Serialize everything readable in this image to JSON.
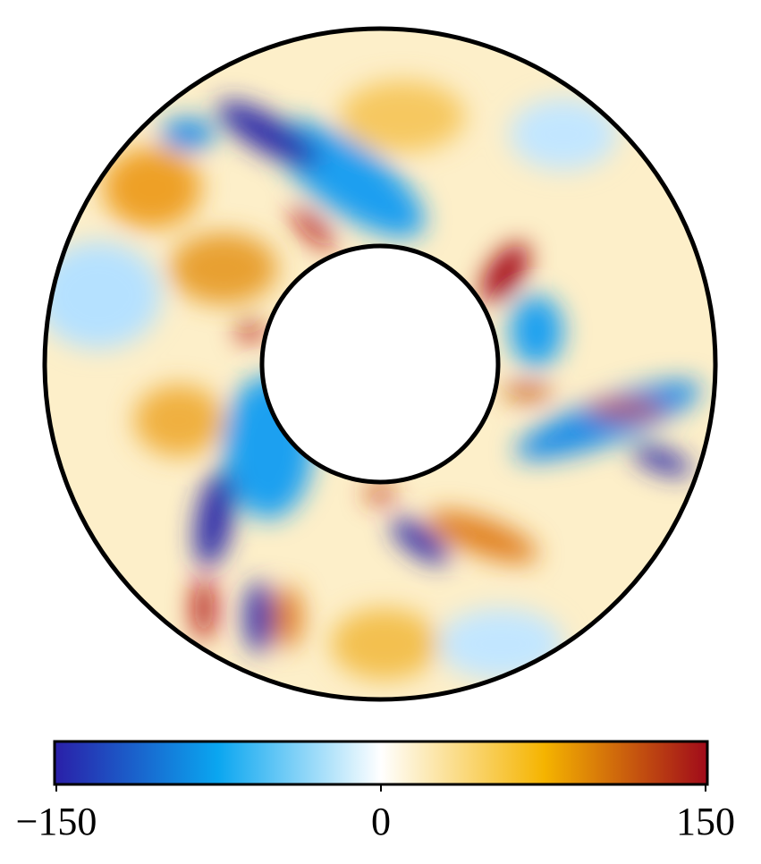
{
  "chart_data": {
    "type": "heatmap",
    "colormap": [
      "#2a1fa8",
      "#0aa6f0",
      "#ffffff",
      "#f5b400",
      "#a00a1a"
    ],
    "zlim": [
      -150,
      150
    ],
    "zticks": [
      {
        "value": -150,
        "label": "−150"
      },
      0,
      150
    ]
  }
}
